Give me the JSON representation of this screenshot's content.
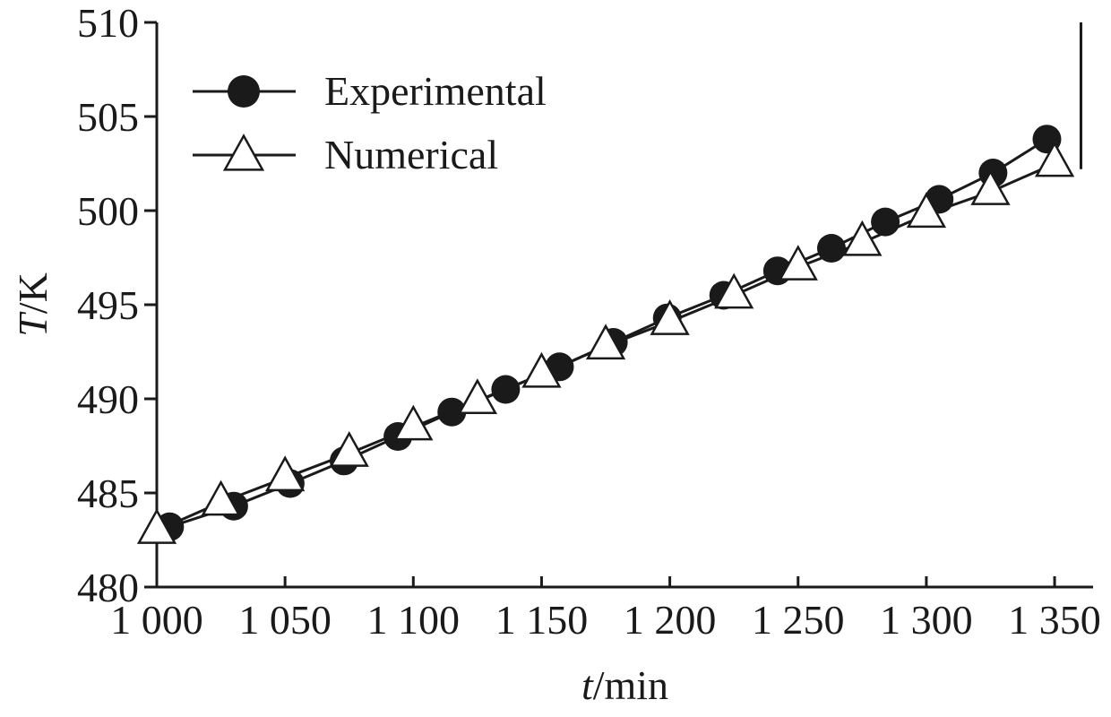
{
  "chart_data": {
    "type": "line",
    "xlabel_italic": "t",
    "xlabel_unit": "/min",
    "ylabel_italic": "T",
    "ylabel_unit": "/K",
    "xlim": [
      1000,
      1365
    ],
    "ylim": [
      480,
      510
    ],
    "x_ticks": [
      1000,
      1050,
      1100,
      1150,
      1200,
      1250,
      1300,
      1350
    ],
    "x_tick_labels": [
      "1 000",
      "1 050",
      "1 100",
      "1 150",
      "1 200",
      "1 250",
      "1 300",
      "1 350"
    ],
    "y_ticks": [
      480,
      485,
      490,
      495,
      500,
      505,
      510
    ],
    "y_tick_labels": [
      "480",
      "485",
      "490",
      "495",
      "500",
      "505",
      "510"
    ],
    "grid": false,
    "legend_position": "top-left",
    "series": [
      {
        "name": "Experimental",
        "marker": "circle-filled",
        "x": [
          1005,
          1030,
          1052,
          1073,
          1094,
          1115,
          1136,
          1157,
          1178,
          1199,
          1221,
          1242,
          1263,
          1284,
          1305,
          1326,
          1347
        ],
        "y": [
          483.2,
          484.3,
          485.5,
          486.7,
          488.0,
          489.3,
          490.5,
          491.7,
          493.0,
          494.3,
          495.5,
          496.8,
          498.0,
          499.4,
          500.6,
          502.0,
          503.8
        ]
      },
      {
        "name": "Numerical",
        "marker": "triangle-open",
        "x": [
          1000,
          1025,
          1050,
          1075,
          1100,
          1125,
          1150,
          1175,
          1200,
          1225,
          1250,
          1275,
          1300,
          1325,
          1350
        ],
        "y": [
          483.0,
          484.5,
          485.8,
          487.1,
          488.5,
          489.9,
          491.3,
          492.8,
          494.1,
          495.5,
          497.0,
          498.3,
          499.8,
          501.0,
          502.5
        ]
      }
    ]
  }
}
